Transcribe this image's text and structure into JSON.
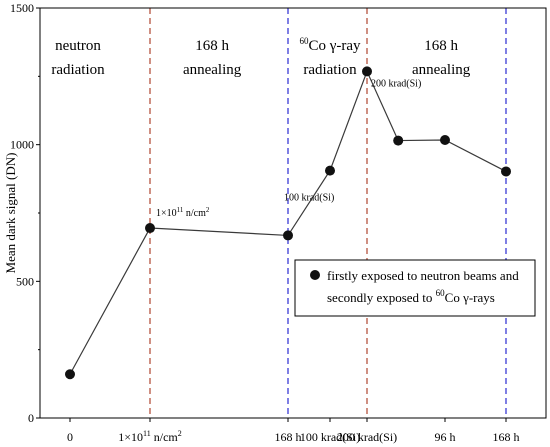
{
  "chart_data": {
    "type": "line",
    "ylabel": "Mean dark signal (DN)",
    "ylim": [
      0,
      1500
    ],
    "yticks": [
      "0",
      "500",
      "1000",
      "1500"
    ],
    "xticks": [
      {
        "stage": 0,
        "label": "0"
      },
      {
        "stage": 1,
        "label": "1×10",
        "sup": "11",
        "rest": " n/cm",
        "sup2": "2"
      },
      {
        "stage": 2,
        "label": "168 h"
      },
      {
        "stage": 3,
        "label": "100 krad(Si)"
      },
      {
        "stage": 4,
        "label": "200 krad(Si)"
      },
      {
        "stage": 5,
        "label": "96 h"
      },
      {
        "stage": 6,
        "label": "168 h"
      }
    ],
    "series": [
      {
        "name": "firstly exposed to neutron beams and secondly exposed to 60Co γ-rays",
        "points": [
          {
            "x": 0,
            "y": 160
          },
          {
            "x": 1,
            "y": 695
          },
          {
            "x": 2,
            "y": 668
          },
          {
            "x": 3,
            "y": 905
          },
          {
            "x": 4,
            "y": 1268
          },
          {
            "x": 4.4,
            "y": 1015
          },
          {
            "x": 5,
            "y": 1017
          },
          {
            "x": 6,
            "y": 902
          }
        ]
      }
    ],
    "dividers": [
      {
        "x": 1,
        "color": "#b5533f"
      },
      {
        "x": 2,
        "color": "#3a3ad6"
      },
      {
        "x": 4,
        "color": "#b5533f"
      },
      {
        "x": 6,
        "color": "#3a3ad6"
      }
    ],
    "regions": [
      {
        "lines": [
          "neutron",
          "radiation"
        ],
        "xc": 0.1
      },
      {
        "lines": [
          "168 h",
          "annealing"
        ],
        "xc": 1.45
      },
      {
        "lines": [
          "60Co γ-ray",
          "radiation"
        ],
        "xc": 3.0
      },
      {
        "lines": [
          "168 h",
          "annealing"
        ],
        "xc": 4.95
      }
    ],
    "annotations": [
      {
        "text": "1×10",
        "sup": "11",
        "rest": " n/cm",
        "sup2": "2",
        "x": 1,
        "y": 695
      },
      {
        "text": "100 krad(Si)",
        "x": 3,
        "y": 905
      },
      {
        "text": "200 krad(Si)",
        "x": 4,
        "y": 1268
      }
    ],
    "legend": {
      "line1": "firstly exposed to neutron beams and",
      "line2a": "secondly exposed to ",
      "line2sup": "60",
      "line2b": "Co γ-rays",
      "placement": "right-middle"
    },
    "region_sup": "60",
    "region_co": "Co γ-ray"
  }
}
